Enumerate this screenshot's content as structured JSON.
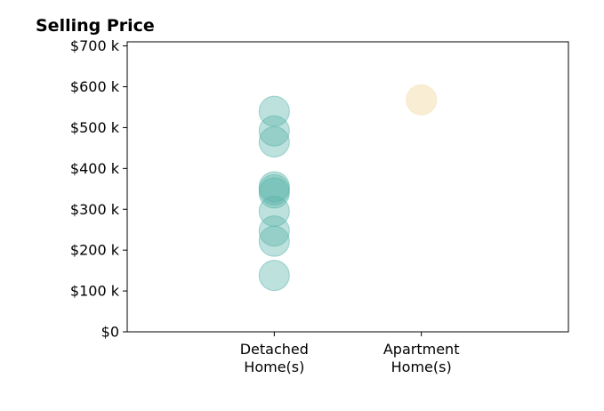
{
  "chart_data": {
    "type": "scatter",
    "title": "Selling Price",
    "xlabel": "",
    "ylabel": "",
    "categories": [
      {
        "line1": "Detached",
        "line2": "Home(s)"
      },
      {
        "line1": "Apartment",
        "line2": "Home(s)"
      }
    ],
    "xlim": [
      -1,
      2
    ],
    "ylim": [
      0,
      710000
    ],
    "yticks": [
      0,
      100000,
      200000,
      300000,
      400000,
      500000,
      600000,
      700000
    ],
    "ytick_labels": [
      "$0",
      "$100 k",
      "$200 k",
      "$300 k",
      "$400 k",
      "$500 k",
      "$600 k",
      "$700 k"
    ],
    "grid": false,
    "series": [
      {
        "category_index": 0,
        "color": "#5bb5ab",
        "values": [
          540000,
          492000,
          465000,
          355000,
          348000,
          340000,
          295000,
          247000,
          222000,
          138000
        ]
      },
      {
        "category_index": 1,
        "color": "#f4dfb0",
        "values": [
          568000
        ]
      }
    ]
  }
}
